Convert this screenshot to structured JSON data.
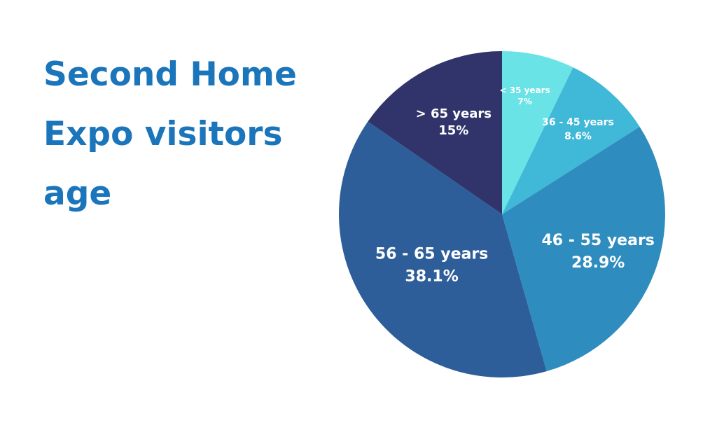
{
  "chart_data": {
    "type": "pie",
    "title_lines": [
      "Second Home",
      "Expo visitors",
      "age"
    ],
    "slices": [
      {
        "label": "< 35 years",
        "value": 7,
        "value_label": "7%",
        "color": "#6ae3e6"
      },
      {
        "label": "36 - 45 years",
        "value": 8.6,
        "value_label": "8.6%",
        "color": "#40b8d8"
      },
      {
        "label": "46 - 55 years",
        "value": 28.9,
        "value_label": "28.9%",
        "color": "#2e8cbf"
      },
      {
        "label": "56 - 65 years",
        "value": 38.1,
        "value_label": "38.1%",
        "color": "#2e5e99"
      },
      {
        "label": "> 65 years",
        "value": 15,
        "value_label": "15%",
        "color": "#30346a"
      }
    ],
    "start_angle": "12 o'clock",
    "direction": "clockwise",
    "legend": "none"
  }
}
